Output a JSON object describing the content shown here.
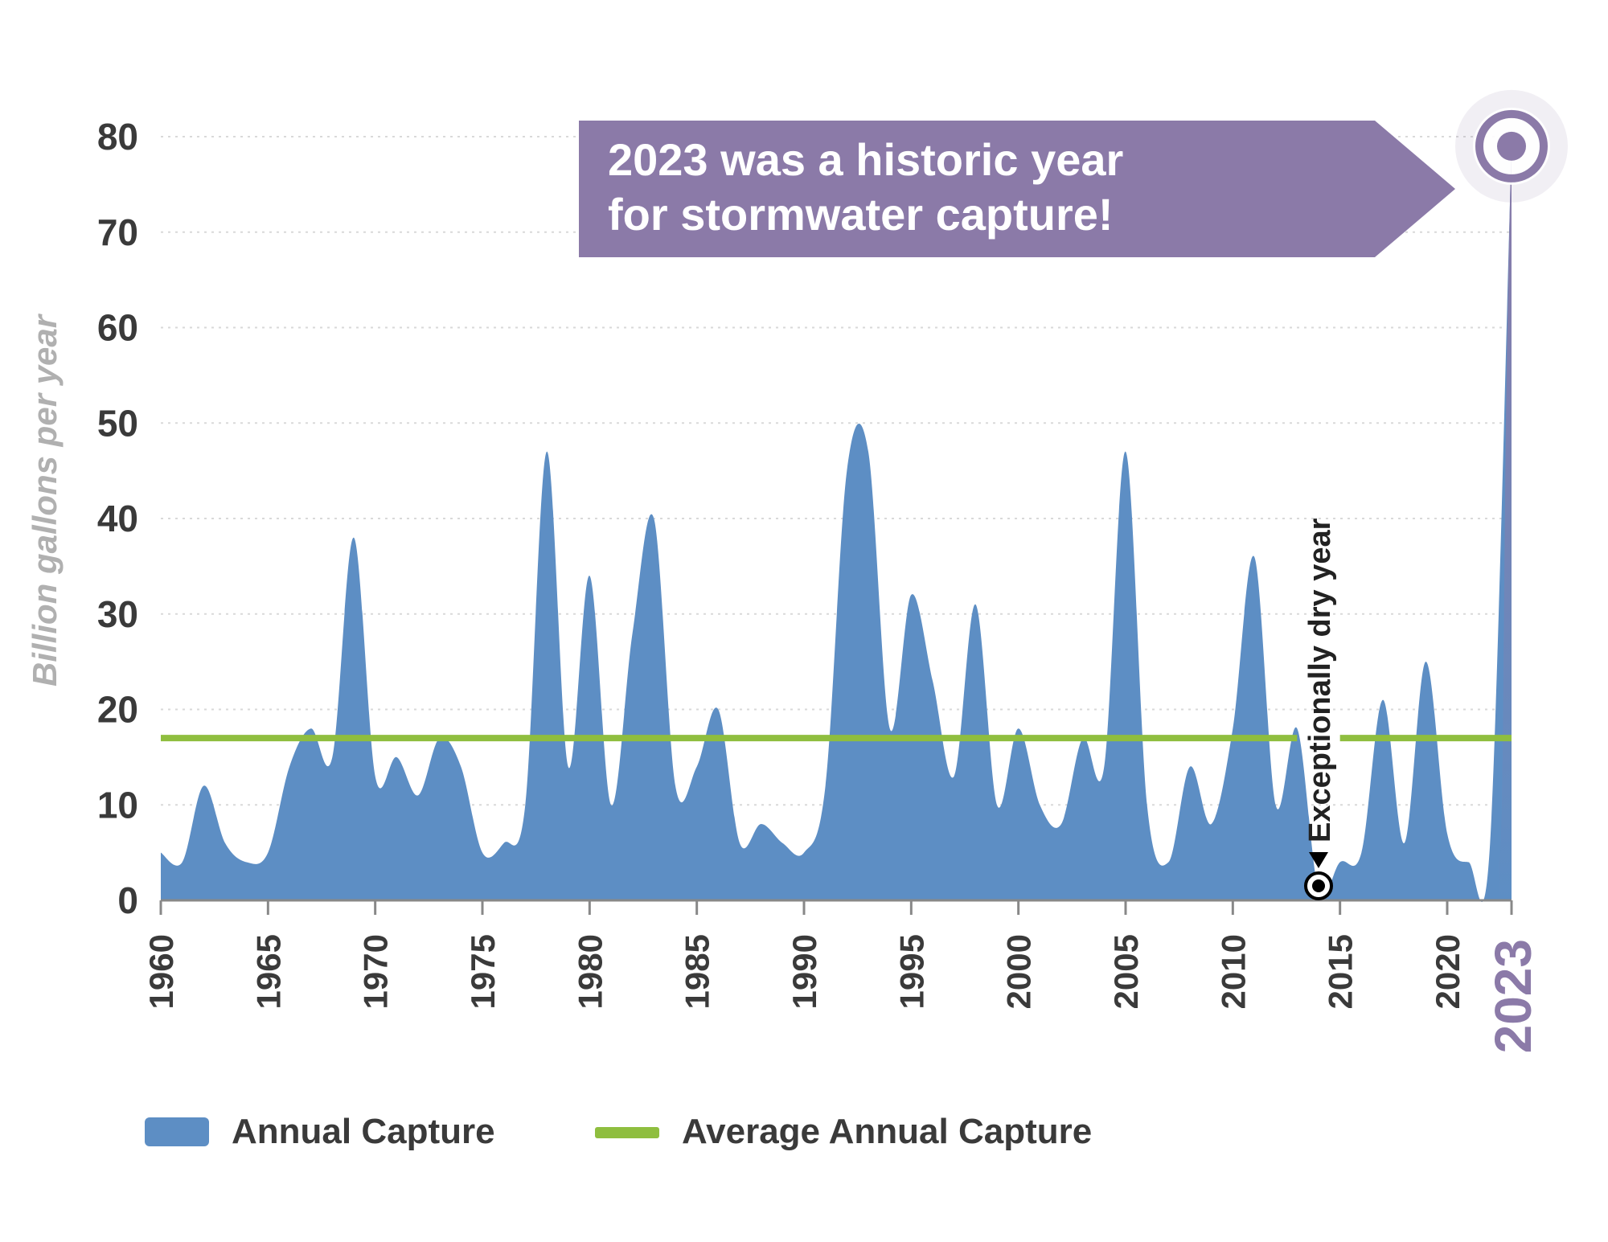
{
  "chart": {
    "type": "area",
    "background_color": "#ffffff",
    "grid_color": "#d9d9d9",
    "area_fill_color": "#5d8ec4",
    "peak2023_color": "#8b7aa8",
    "average_line_color": "#8fbe3f",
    "axis_text_color": "#3a3a3a",
    "yaxis_title_color": "#b0b0b0",
    "ytick_fontsize": 46,
    "xtick_fontsize": 42,
    "yaxis_title_fontsize": 42,
    "legend_fontsize": 44,
    "callout_fontsize": 56,
    "dry_label_fontsize": 38,
    "year2023_fontsize": 64,
    "ylim": [
      0,
      80
    ],
    "ytick_step": 10,
    "yticks": [
      0,
      10,
      20,
      30,
      40,
      50,
      60,
      70,
      80
    ],
    "xlim": [
      1960,
      2023
    ],
    "xticks": [
      1960,
      1965,
      1970,
      1975,
      1980,
      1985,
      1990,
      1995,
      2000,
      2005,
      2010,
      2015,
      2020,
      2023
    ],
    "yaxis_title": "Billion gallons per year",
    "average_value": 17,
    "average_gap": [
      2013,
      2015
    ],
    "dry_year": {
      "year": 2014,
      "label": "Exceptionally dry year"
    },
    "callout": {
      "line1": "2023 was a historic year",
      "line2": "for stormwater capture!",
      "bg_color": "#8b7aa8",
      "text_color": "#ffffff"
    },
    "year2023_label": "2023",
    "year2023_color": "#8b7aa8",
    "legend": {
      "annual": "Annual Capture",
      "average": "Average Annual Capture"
    },
    "series": {
      "years": [
        1960,
        1961,
        1962,
        1963,
        1964,
        1965,
        1966,
        1967,
        1968,
        1969,
        1970,
        1971,
        1972,
        1973,
        1974,
        1975,
        1976,
        1977,
        1978,
        1979,
        1980,
        1981,
        1982,
        1983,
        1984,
        1985,
        1986,
        1987,
        1988,
        1989,
        1990,
        1991,
        1992,
        1993,
        1994,
        1995,
        1996,
        1997,
        1998,
        1999,
        2000,
        2001,
        2002,
        2003,
        2004,
        2005,
        2006,
        2007,
        2008,
        2009,
        2010,
        2011,
        2012,
        2013,
        2014,
        2015,
        2016,
        2017,
        2018,
        2019,
        2020,
        2021,
        2022,
        2023
      ],
      "values": [
        5,
        4,
        12,
        6,
        4,
        5,
        14,
        18,
        15,
        38,
        13,
        15,
        11,
        17,
        14,
        5,
        6,
        10,
        47,
        14,
        34,
        10,
        28,
        40,
        12,
        14,
        20,
        6,
        8,
        6,
        5,
        12,
        45,
        47,
        18,
        32,
        23,
        13,
        31,
        10,
        18,
        10,
        8,
        17,
        14,
        47,
        10,
        4,
        14,
        8,
        18,
        36,
        10,
        18,
        1,
        4,
        5,
        21,
        6,
        25,
        7,
        4,
        6,
        79
      ]
    }
  }
}
